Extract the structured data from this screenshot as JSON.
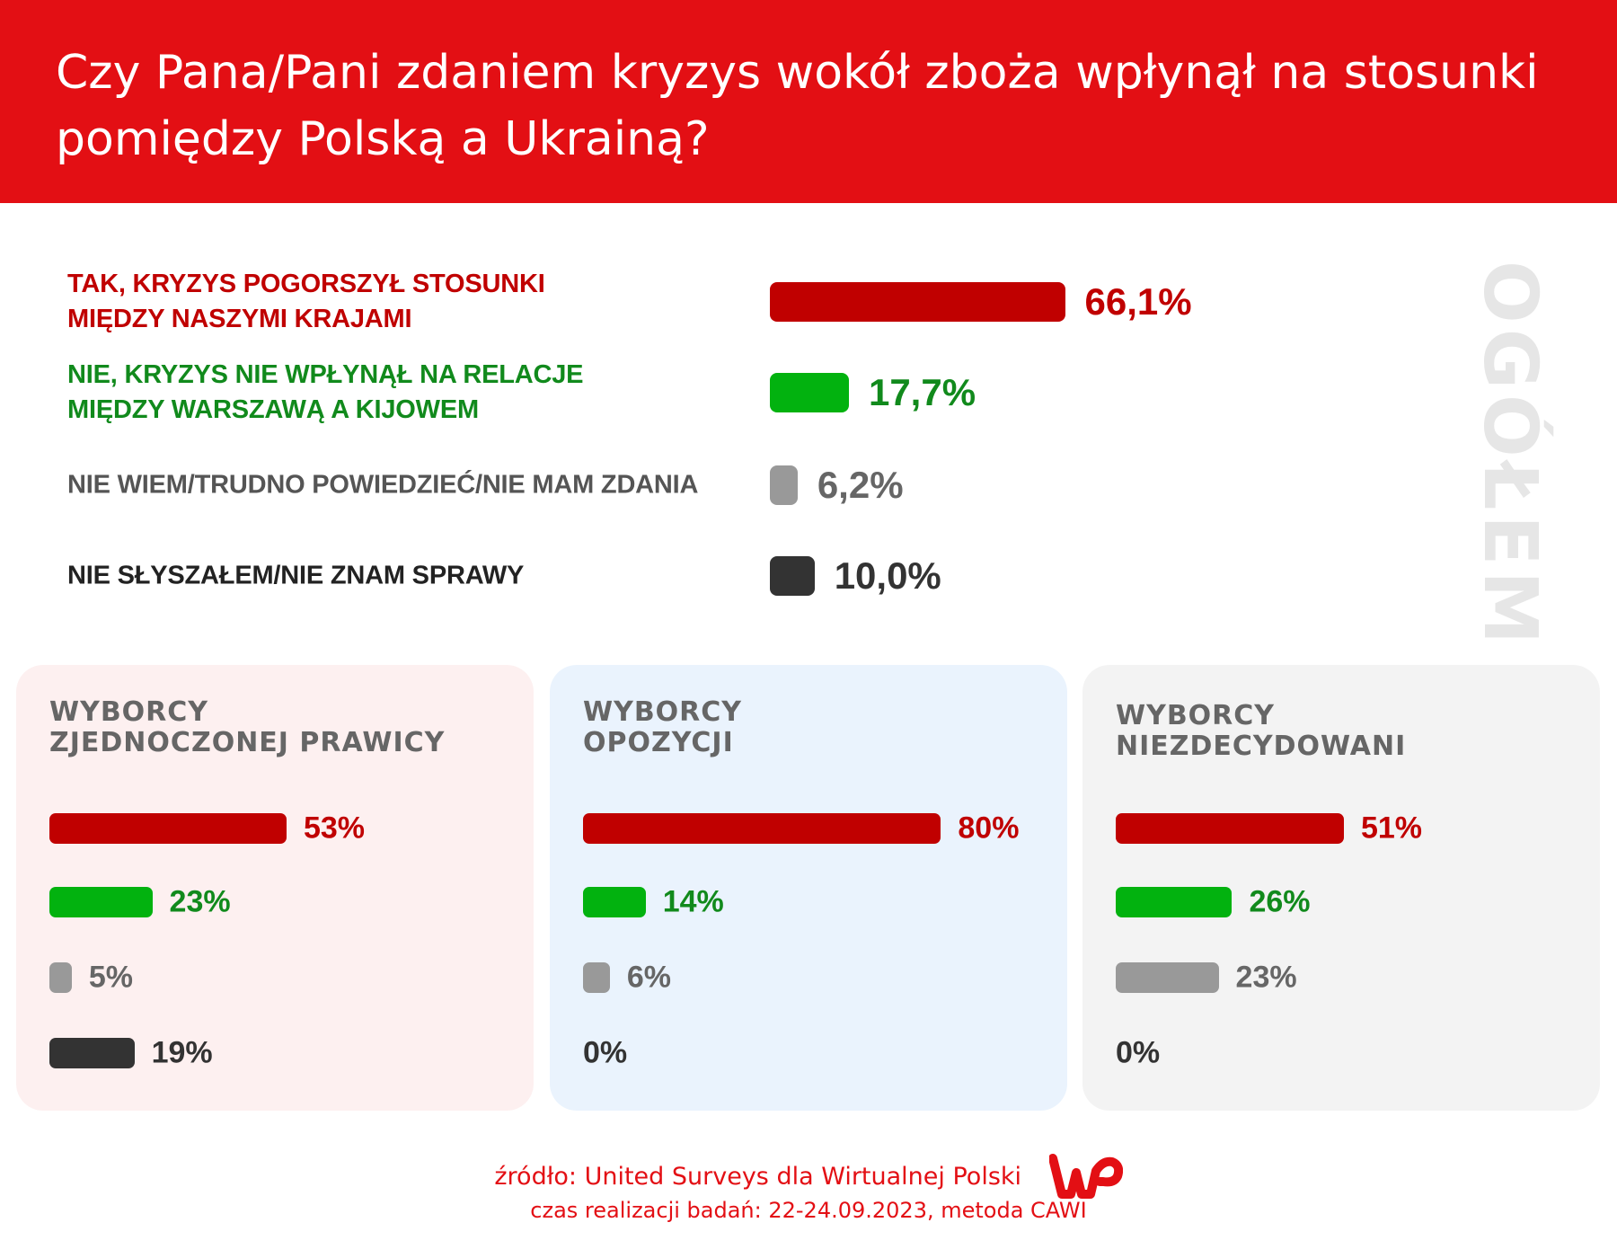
{
  "header": {
    "title": "Czy Pana/Pani zdaniem kryzys wokół zboża wpłynął na stosunki pomiędzy Polską a Ukrainą?"
  },
  "colors": {
    "header": "#e30f14",
    "yes": "#c00000",
    "no_bar": "#02b20f",
    "no_text": "#118a1c",
    "dontknow": "#999999",
    "dontknow_text": "#666666",
    "notheard": "#333333"
  },
  "chart_data": {
    "type": "bar",
    "title": "Czy Pana/Pani zdaniem kryzys wokół zboża wpłynął na stosunki pomiędzy Polską a Ukrainą?",
    "categories": [
      "TAK, KRYZYS POGORSZYŁ STOSUNKI MIĘDZY NASZYMI KRAJAMI",
      "NIE, KRYZYS NIE WPŁYNĄŁ NA RELACJE MIĘDZY WARSZAWĄ A KIJOWEM",
      "NIE WIEM/TRUDNO POWIEDZIEĆ/NIE MAM ZDANIA",
      "NIE SŁYSZAŁEM/NIE ZNAM SPRAWY"
    ],
    "label_lines": [
      [
        "TAK, KRYZYS POGORSZYŁ STOSUNKI",
        "MIĘDZY NASZYMI KRAJAMI"
      ],
      [
        "NIE, KRYZYS NIE WPŁYNĄŁ NA RELACJE",
        "MIĘDZY WARSZAWĄ A KIJOWEM"
      ],
      [
        "NIE WIEM/TRUDNO POWIEDZIEĆ/NIE MAM ZDANIA"
      ],
      [
        "NIE SŁYSZAŁEM/NIE ZNAM SPRAWY"
      ]
    ],
    "overall": {
      "name": "OGÓŁEM",
      "values": [
        66.1,
        17.7,
        6.2,
        10.0
      ],
      "labels": [
        "66,1%",
        "17,7%",
        "6,2%",
        "10,0%"
      ]
    },
    "series": [
      {
        "name": "WYBORCY ZJEDNOCZONEJ PRAWICY",
        "title_lines": [
          "WYBORCY",
          "ZJEDNOCZONEJ PRAWICY"
        ],
        "values": [
          53,
          23,
          5,
          19
        ],
        "labels": [
          "53%",
          "23%",
          "5%",
          "19%"
        ]
      },
      {
        "name": "WYBORCY OPOZYCJI",
        "title_lines": [
          "WYBORCY",
          "OPOZYCJI"
        ],
        "values": [
          80,
          14,
          6,
          0
        ],
        "labels": [
          "80%",
          "14%",
          "6%",
          "0%"
        ]
      },
      {
        "name": "WYBORCY NIEZDECYDOWANI",
        "title_lines": [
          "WYBORCY",
          "NIEZDECYDOWANI"
        ],
        "values": [
          51,
          26,
          23,
          0
        ],
        "labels": [
          "51%",
          "26%",
          "23%",
          "0%"
        ]
      }
    ],
    "xlabel": "",
    "ylabel": "",
    "ylim": [
      0,
      100
    ]
  },
  "footer": {
    "source": "źródło: United Surveys dla Wirtualnej Polski",
    "logo": "WP",
    "method": "czas realizacji badań: 22-24.09.2023, metoda CAWI"
  }
}
